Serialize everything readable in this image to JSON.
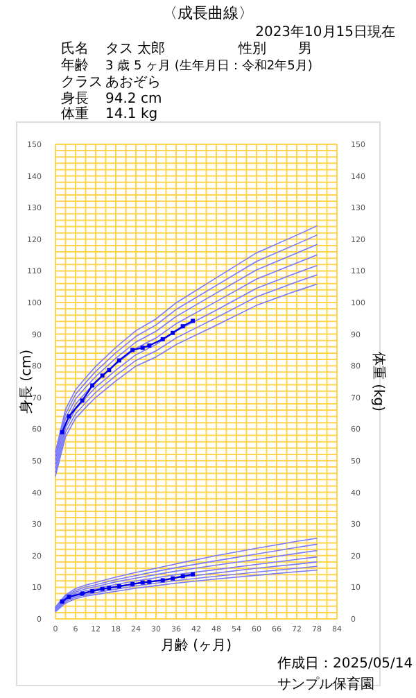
{
  "chart_data": {
    "type": "line",
    "title": "〈成長曲線〉",
    "xlabel": "月齢 (ヶ月)",
    "ylabel": "身長 (cm)",
    "y2label": "体重 (kg)",
    "annotations": [
      "2023年10月15日現在",
      "氏名",
      "タス 太郎",
      "性別",
      "男",
      "年齢",
      "3 歳 5 ヶ月 (生年月日：令和2年5月)",
      "クラス",
      "あおぞら",
      "身長",
      "94.2 cm",
      "体重",
      "14.1 kg",
      "作成日：2025/05/14",
      "サンプル保育園"
    ],
    "xlim": [
      0,
      84
    ],
    "ylim": [
      0,
      150
    ],
    "y2lim": [
      0,
      150
    ],
    "xticks": [
      0,
      {
        "value": 3,
        "label": null
      },
      6,
      {
        "value": 9,
        "label": null
      },
      12,
      {
        "value": 15,
        "label": null
      },
      18,
      {
        "value": 21,
        "label": null
      },
      24,
      {
        "value": 27,
        "label": null
      },
      30,
      {
        "value": 33,
        "label": null
      },
      36,
      {
        "value": 39,
        "label": null
      },
      42,
      {
        "value": 45,
        "label": null
      },
      48,
      {
        "value": 51,
        "label": null
      },
      54,
      {
        "value": 57,
        "label": null
      },
      60,
      {
        "value": 63,
        "label": null
      },
      66,
      {
        "value": 69,
        "label": null
      },
      72,
      {
        "value": 75,
        "label": null
      },
      78,
      {
        "value": 81,
        "label": null
      },
      84
    ],
    "yticks": [
      0,
      {
        "value": 2,
        "label": null
      },
      {
        "value": 4,
        "label": null
      },
      {
        "value": 6,
        "label": null
      },
      {
        "value": 8,
        "label": null
      },
      10,
      {
        "value": 12,
        "label": null
      },
      {
        "value": 14,
        "label": null
      },
      {
        "value": 16,
        "label": null
      },
      {
        "value": 18,
        "label": null
      },
      20,
      {
        "value": 22,
        "label": null
      },
      {
        "value": 24,
        "label": null
      },
      {
        "value": 26,
        "label": null
      },
      {
        "value": 28,
        "label": null
      },
      30,
      {
        "value": 32,
        "label": null
      },
      {
        "value": 34,
        "label": null
      },
      {
        "value": 36,
        "label": null
      },
      {
        "value": 38,
        "label": null
      },
      40,
      {
        "value": 42,
        "label": null
      },
      {
        "value": 44,
        "label": null
      },
      {
        "value": 46,
        "label": null
      },
      {
        "value": 48,
        "label": null
      },
      50,
      {
        "value": 52,
        "label": null
      },
      {
        "value": 54,
        "label": null
      },
      {
        "value": 56,
        "label": null
      },
      {
        "value": 58,
        "label": null
      },
      60,
      {
        "value": 62,
        "label": null
      },
      {
        "value": 64,
        "label": null
      },
      {
        "value": 66,
        "label": null
      },
      {
        "value": 68,
        "label": null
      },
      70,
      {
        "value": 72,
        "label": null
      },
      {
        "value": 74,
        "label": null
      },
      {
        "value": 76,
        "label": null
      },
      {
        "value": 78,
        "label": null
      },
      80,
      {
        "value": 82,
        "label": null
      },
      {
        "value": 84,
        "label": null
      },
      {
        "value": 86,
        "label": null
      },
      {
        "value": 88,
        "label": null
      },
      90,
      {
        "value": 92,
        "label": null
      },
      {
        "value": 94,
        "label": null
      },
      {
        "value": 96,
        "label": null
      },
      {
        "value": 98,
        "label": null
      },
      100,
      {
        "value": 102,
        "label": null
      },
      {
        "value": 104,
        "label": null
      },
      {
        "value": 106,
        "label": null
      },
      {
        "value": 108,
        "label": null
      },
      110,
      {
        "value": 112,
        "label": null
      },
      {
        "value": 114,
        "label": null
      },
      {
        "value": 116,
        "label": null
      },
      {
        "value": 118,
        "label": null
      },
      120,
      {
        "value": 122,
        "label": null
      },
      {
        "value": 124,
        "label": null
      },
      {
        "value": 126,
        "label": null
      },
      {
        "value": 128,
        "label": null
      },
      130,
      {
        "value": 132,
        "label": null
      },
      {
        "value": 134,
        "label": null
      },
      {
        "value": 136,
        "label": null
      },
      {
        "value": 138,
        "label": null
      },
      140,
      {
        "value": 142,
        "label": null
      },
      {
        "value": 144,
        "label": null
      },
      {
        "value": 146,
        "label": null
      },
      {
        "value": 148,
        "label": null
      },
      150
    ],
    "y2ticks": [
      0,
      10,
      20,
      30,
      40,
      50,
      60,
      70,
      80,
      90,
      100,
      110,
      120,
      130,
      140,
      150
    ],
    "grid": true,
    "series": [
      {
        "color": "#7777ff",
        "marker": "none",
        "x": [
          0,
          3,
          6,
          9,
          12,
          18,
          24,
          30,
          36,
          48,
          60,
          72,
          78
        ],
        "values": [
          45.2,
          57.6,
          63.4,
          66.8,
          70.0,
          75.2,
          79.9,
          82.8,
          86.7,
          92.8,
          99.1,
          103.7,
          105.8
        ]
      },
      {
        "color": "#7777ff",
        "marker": "none",
        "x": [
          0,
          3,
          6,
          9,
          12,
          18,
          24,
          30,
          36,
          48,
          60,
          72,
          78
        ],
        "values": [
          46.4,
          59.0,
          64.8,
          68.3,
          71.6,
          76.9,
          81.7,
          84.7,
          88.8,
          95.2,
          101.8,
          106.5,
          108.7
        ]
      },
      {
        "color": "#7777ff",
        "marker": "none",
        "x": [
          0,
          3,
          6,
          9,
          12,
          18,
          24,
          30,
          36,
          48,
          60,
          72,
          78
        ],
        "values": [
          47.7,
          60.4,
          66.3,
          69.8,
          73.2,
          78.6,
          83.5,
          86.7,
          91.0,
          97.6,
          104.5,
          109.4,
          111.7
        ]
      },
      {
        "color": "#7777ff",
        "marker": "none",
        "x": [
          0,
          3,
          6,
          9,
          12,
          18,
          24,
          30,
          36,
          48,
          60,
          72,
          78
        ],
        "values": [
          49.0,
          61.9,
          67.9,
          71.5,
          74.9,
          80.5,
          85.5,
          88.8,
          93.3,
          100.3,
          107.4,
          112.5,
          115.0
        ]
      },
      {
        "color": "#7777ff",
        "marker": "none",
        "x": [
          0,
          3,
          6,
          9,
          12,
          18,
          24,
          30,
          36,
          48,
          60,
          72,
          78
        ],
        "values": [
          50.3,
          63.4,
          69.5,
          73.2,
          76.6,
          82.4,
          87.5,
          90.9,
          95.6,
          103.0,
          110.3,
          115.6,
          118.3
        ]
      },
      {
        "color": "#7777ff",
        "marker": "none",
        "x": [
          0,
          3,
          6,
          9,
          12,
          18,
          24,
          30,
          36,
          48,
          60,
          72,
          78
        ],
        "values": [
          51.6,
          64.8,
          71.0,
          74.7,
          78.2,
          84.1,
          89.3,
          92.9,
          97.8,
          105.4,
          113.0,
          118.5,
          121.3
        ]
      },
      {
        "color": "#7777ff",
        "marker": "none",
        "x": [
          0,
          3,
          6,
          9,
          12,
          18,
          24,
          30,
          36,
          48,
          60,
          72,
          78
        ],
        "values": [
          52.8,
          66.2,
          72.4,
          76.2,
          79.8,
          85.8,
          91.1,
          94.8,
          99.9,
          107.8,
          115.7,
          121.3,
          124.2
        ]
      },
      {
        "color": "#7777ff",
        "marker": "none",
        "x": [
          0,
          3,
          6,
          9,
          12,
          18,
          24,
          30,
          36,
          48,
          60,
          72,
          78
        ],
        "values": [
          2.3,
          5.0,
          6.4,
          7.2,
          7.7,
          8.7,
          9.7,
          10.5,
          11.3,
          12.6,
          13.8,
          14.9,
          15.4
        ]
      },
      {
        "color": "#7777ff",
        "marker": "none",
        "x": [
          0,
          3,
          6,
          9,
          12,
          18,
          24,
          30,
          36,
          48,
          60,
          72,
          78
        ],
        "values": [
          2.6,
          5.5,
          6.9,
          7.7,
          8.3,
          9.4,
          10.4,
          11.3,
          12.1,
          13.5,
          14.8,
          16.0,
          16.6
        ]
      },
      {
        "color": "#7777ff",
        "marker": "none",
        "x": [
          0,
          3,
          6,
          9,
          12,
          18,
          24,
          30,
          36,
          48,
          60,
          72,
          78
        ],
        "values": [
          2.8,
          5.9,
          7.4,
          8.3,
          8.9,
          10.1,
          11.2,
          12.1,
          13.0,
          14.5,
          16.0,
          17.3,
          18.0
        ]
      },
      {
        "color": "#7777ff",
        "marker": "none",
        "x": [
          0,
          3,
          6,
          9,
          12,
          18,
          24,
          30,
          36,
          48,
          60,
          72,
          78
        ],
        "values": [
          3.0,
          6.3,
          8.0,
          8.9,
          9.5,
          10.9,
          12.0,
          13.0,
          14.0,
          15.6,
          17.2,
          18.8,
          19.6
        ]
      },
      {
        "color": "#7777ff",
        "marker": "none",
        "x": [
          0,
          3,
          6,
          9,
          12,
          18,
          24,
          30,
          36,
          48,
          60,
          72,
          78
        ],
        "values": [
          3.3,
          6.8,
          8.5,
          9.5,
          10.2,
          11.7,
          12.9,
          14.0,
          15.1,
          17.0,
          18.8,
          20.7,
          21.6
        ]
      },
      {
        "color": "#7777ff",
        "marker": "none",
        "x": [
          0,
          3,
          6,
          9,
          12,
          18,
          24,
          30,
          36,
          48,
          60,
          72,
          78
        ],
        "values": [
          3.5,
          7.2,
          9.0,
          10.1,
          10.8,
          12.4,
          13.7,
          15.0,
          16.2,
          18.4,
          20.5,
          22.6,
          23.6
        ]
      },
      {
        "color": "#7777ff",
        "marker": "none",
        "x": [
          0,
          3,
          6,
          9,
          12,
          18,
          24,
          30,
          36,
          48,
          60,
          72,
          78
        ],
        "values": [
          3.8,
          7.6,
          9.6,
          10.7,
          11.5,
          13.2,
          14.7,
          16.0,
          17.4,
          20.0,
          22.3,
          24.5,
          25.5
        ]
      },
      {
        "color": "#0000ee",
        "marker": "square",
        "x": [
          2,
          4,
          8,
          11,
          14,
          16,
          19,
          23,
          26,
          28,
          32,
          35,
          38,
          41
        ],
        "values": [
          59,
          64,
          69,
          73.8,
          76.9,
          78.7,
          81.7,
          85,
          85.7,
          86.4,
          88.4,
          90.4,
          92.5,
          94.2
        ]
      },
      {
        "color": "#0000ee",
        "marker": "square",
        "x": [
          2,
          4,
          8,
          11,
          14,
          16,
          19,
          23,
          26,
          28,
          32,
          35,
          38,
          41
        ],
        "values": [
          5.5,
          7,
          8,
          8.8,
          9.5,
          9.8,
          10.3,
          11,
          11.5,
          11.7,
          12.2,
          12.8,
          13.5,
          14.1
        ]
      }
    ]
  }
}
